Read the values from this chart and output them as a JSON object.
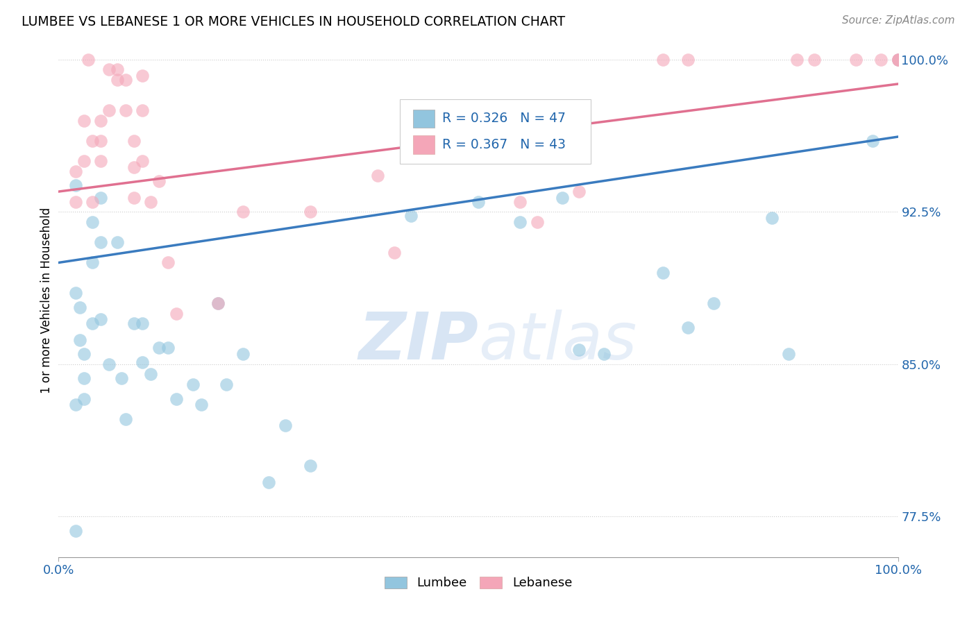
{
  "title": "LUMBEE VS LEBANESE 1 OR MORE VEHICLES IN HOUSEHOLD CORRELATION CHART",
  "source": "Source: ZipAtlas.com",
  "ylabel": "1 or more Vehicles in Household",
  "xlim": [
    0.0,
    1.0
  ],
  "ylim": [
    0.755,
    1.008
  ],
  "yticks": [
    0.775,
    0.85,
    0.925,
    1.0
  ],
  "ytick_labels": [
    "77.5%",
    "85.0%",
    "92.5%",
    "100.0%"
  ],
  "xtick_labels": [
    "0.0%",
    "100.0%"
  ],
  "legend_labels": [
    "Lumbee",
    "Lebanese"
  ],
  "lumbee_r": "R = 0.326",
  "lumbee_n": "N = 47",
  "lebanese_r": "R = 0.367",
  "lebanese_n": "N = 43",
  "blue_color": "#92c5de",
  "pink_color": "#f4a6b8",
  "blue_line_color": "#3a7bbf",
  "pink_line_color": "#e07090",
  "legend_r_color": "#2166ac",
  "watermark_color": "#c8daf0",
  "lumbee_x": [
    0.02,
    0.02,
    0.02,
    0.025,
    0.025,
    0.03,
    0.03,
    0.03,
    0.04,
    0.04,
    0.04,
    0.05,
    0.05,
    0.05,
    0.06,
    0.07,
    0.075,
    0.08,
    0.09,
    0.1,
    0.1,
    0.11,
    0.12,
    0.13,
    0.14,
    0.16,
    0.17,
    0.19,
    0.2,
    0.22,
    0.25,
    0.27,
    0.3,
    0.42,
    0.5,
    0.55,
    0.6,
    0.62,
    0.65,
    0.72,
    0.78,
    0.85,
    0.87,
    0.97,
    1.0,
    0.02,
    0.75
  ],
  "lumbee_y": [
    0.768,
    0.885,
    0.938,
    0.878,
    0.862,
    0.855,
    0.843,
    0.833,
    0.92,
    0.9,
    0.87,
    0.932,
    0.91,
    0.872,
    0.85,
    0.91,
    0.843,
    0.823,
    0.87,
    0.87,
    0.851,
    0.845,
    0.858,
    0.858,
    0.833,
    0.84,
    0.83,
    0.88,
    0.84,
    0.855,
    0.792,
    0.82,
    0.8,
    0.923,
    0.93,
    0.92,
    0.932,
    0.857,
    0.855,
    0.895,
    0.88,
    0.922,
    0.855,
    0.96,
    1.0,
    0.83,
    0.868
  ],
  "lebanese_x": [
    0.02,
    0.02,
    0.03,
    0.03,
    0.035,
    0.04,
    0.04,
    0.05,
    0.05,
    0.05,
    0.06,
    0.06,
    0.07,
    0.07,
    0.08,
    0.08,
    0.09,
    0.09,
    0.09,
    0.1,
    0.1,
    0.1,
    0.11,
    0.12,
    0.13,
    0.14,
    0.19,
    0.22,
    0.3,
    0.38,
    0.4,
    0.55,
    0.57,
    0.62,
    0.72,
    0.75,
    0.88,
    0.9,
    0.95,
    0.98,
    1.0,
    1.0,
    1.0
  ],
  "lebanese_y": [
    0.945,
    0.93,
    0.97,
    0.95,
    1.0,
    0.96,
    0.93,
    0.97,
    0.96,
    0.95,
    0.995,
    0.975,
    0.995,
    0.99,
    0.99,
    0.975,
    0.96,
    0.947,
    0.932,
    0.992,
    0.975,
    0.95,
    0.93,
    0.94,
    0.9,
    0.875,
    0.88,
    0.925,
    0.925,
    0.943,
    0.905,
    0.93,
    0.92,
    0.935,
    1.0,
    1.0,
    1.0,
    1.0,
    1.0,
    1.0,
    1.0,
    1.0,
    1.0
  ],
  "lumbee_trendline": [
    [
      0.0,
      0.9
    ],
    [
      1.0,
      0.962
    ]
  ],
  "lebanese_trendline": [
    [
      0.0,
      0.935
    ],
    [
      1.0,
      0.988
    ]
  ]
}
